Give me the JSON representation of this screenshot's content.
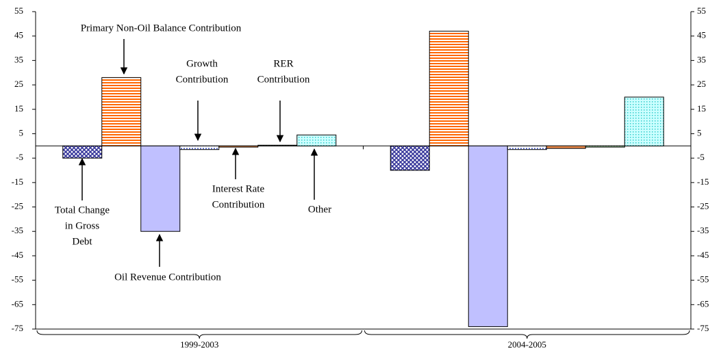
{
  "chart_data": {
    "type": "bar",
    "categories": [
      "1999-2003",
      "2004-2005"
    ],
    "series": [
      {
        "name": [
          "Total Change",
          "in Gross",
          "Debt"
        ],
        "color": "#333399",
        "values": [
          -5,
          -10
        ]
      },
      {
        "name": [
          "Primary Non-Oil Balance Contribution"
        ],
        "color": "#ff6600",
        "values": [
          28,
          47
        ]
      },
      {
        "name": [
          "Oil Revenue Contribution"
        ],
        "color": "#c0c0ff",
        "values": [
          -35,
          -74
        ]
      },
      {
        "name": [
          "Growth",
          "Contribution"
        ],
        "color": "#6677cc",
        "values": [
          -1.5,
          -1.5
        ]
      },
      {
        "name": [
          "Interest Rate",
          "Contribution"
        ],
        "color": "#993300",
        "values": [
          -0.5,
          -1
        ]
      },
      {
        "name": [
          "RER",
          "Contribution"
        ],
        "color": "#336633",
        "values": [
          0.3,
          -0.5
        ]
      },
      {
        "name": [
          "Other"
        ],
        "color": "#33cccc",
        "values": [
          4.5,
          20
        ]
      }
    ],
    "ylim": [
      -75,
      55
    ],
    "yticks": [
      -75,
      -65,
      -55,
      -45,
      -35,
      -25,
      -15,
      -5,
      5,
      15,
      25,
      35,
      45,
      55
    ]
  }
}
